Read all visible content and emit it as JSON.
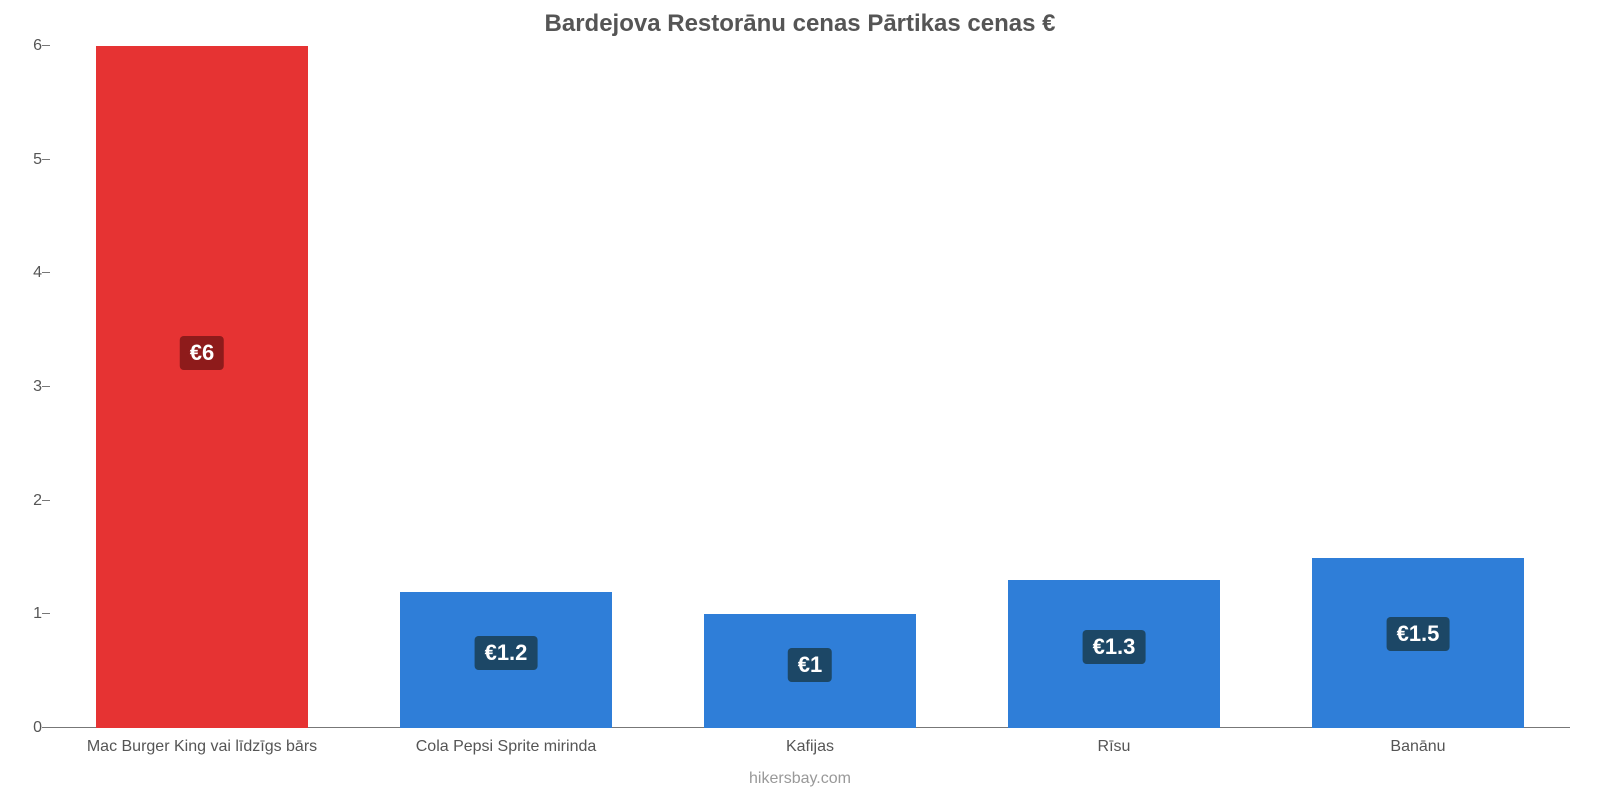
{
  "chart": {
    "type": "bar",
    "title": "Bardejova Restorānu cenas Pārtikas cenas €",
    "title_fontsize": 24,
    "title_color": "#555555",
    "subtitle": "hikersbay.com",
    "subtitle_fontsize": 16,
    "subtitle_color": "#999999",
    "background_color": "#ffffff",
    "plot_background_color": "#ffffff",
    "ylim": [
      0,
      6
    ],
    "ytick_step": 1,
    "yticks": [
      0,
      1,
      2,
      3,
      4,
      5,
      6
    ],
    "y_axis_label_fontsize": 16,
    "y_axis_label_color": "#555555",
    "x_axis_label_fontsize": 16,
    "x_axis_label_color": "#555555",
    "axis_line_color": "#777777",
    "bar_width_ratio": 0.7,
    "grid": false,
    "categories": [
      "Mac Burger King vai līdzīgs bārs",
      "Cola Pepsi Sprite mirinda",
      "Kafijas",
      "Rīsu",
      "Banānu"
    ],
    "values": [
      6,
      1.2,
      1,
      1.3,
      1.5
    ],
    "value_labels": [
      "€6",
      "€1.2",
      "€1",
      "€1.3",
      "€1.5"
    ],
    "bar_colors": [
      "#e63333",
      "#2f7ed8",
      "#2f7ed8",
      "#2f7ed8",
      "#2f7ed8"
    ],
    "value_label_bg_colors": [
      "#8e1b1b",
      "#1c4766",
      "#1c4766",
      "#1c4766",
      "#1c4766"
    ],
    "value_label_text_color": "#ffffff",
    "value_label_fontsize": 22,
    "value_label_position_ratio": 0.55
  }
}
